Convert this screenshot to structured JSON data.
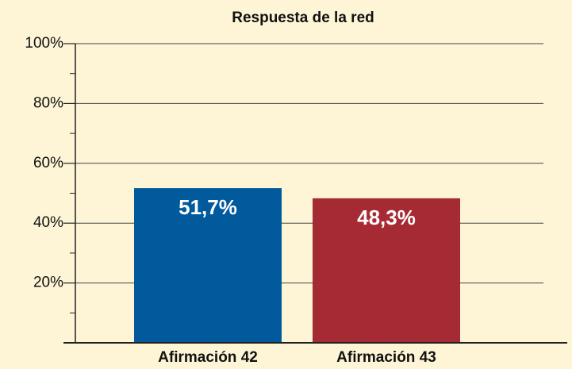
{
  "chart_data": {
    "type": "bar",
    "title": "Respuesta de la red",
    "categories": [
      "Afirmación 42",
      "Afirmación 43"
    ],
    "values": [
      51.7,
      48.3
    ],
    "value_labels": [
      "51,7%",
      "48,3%"
    ],
    "colors": [
      "#005a9c",
      "#a52a33"
    ],
    "ylim": [
      0,
      100
    ],
    "yticks": [
      {
        "value": 20,
        "label": "20%"
      },
      {
        "value": 40,
        "label": "40%"
      },
      {
        "value": 60,
        "label": "60%"
      },
      {
        "value": 80,
        "label": "80%"
      },
      {
        "value": 100,
        "label": "100%"
      }
    ],
    "minor_yticks": [
      10,
      30,
      50,
      70,
      90
    ],
    "grid": true
  }
}
